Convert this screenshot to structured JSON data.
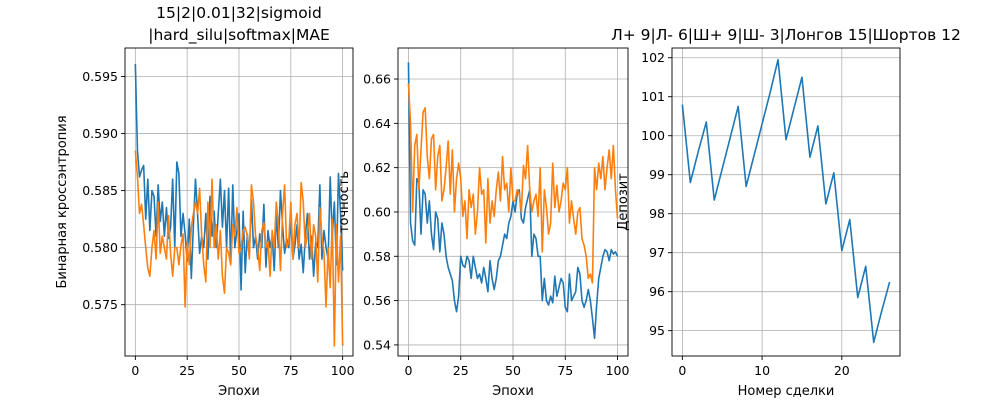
{
  "chart_data": [
    {
      "type": "line",
      "title": "15|2|0.01|32|sigmoid\n|hard_silu|softmax|MAE",
      "xlabel": "Эпохи",
      "ylabel": "Бинарная кроссэнтропия",
      "xlim": [
        -5,
        105
      ],
      "ylim": [
        0.5705,
        0.5975
      ],
      "xticks": [
        0,
        25,
        50,
        75,
        100
      ],
      "yticks": [
        0.575,
        0.58,
        0.585,
        0.59,
        0.595
      ],
      "ytick_labels": [
        "0.575",
        "0.580",
        "0.585",
        "0.590",
        "0.595"
      ],
      "grid": true,
      "series": [
        {
          "color": "#1f77b4",
          "x": [
            0,
            1,
            2,
            3,
            4,
            5,
            6,
            7,
            8,
            9,
            10,
            11,
            12,
            13,
            14,
            15,
            16,
            17,
            18,
            19,
            20,
            21,
            22,
            23,
            24,
            25,
            26,
            27,
            28,
            29,
            30,
            31,
            32,
            33,
            34,
            35,
            36,
            37,
            38,
            39,
            40,
            41,
            42,
            43,
            44,
            45,
            46,
            47,
            48,
            49,
            50,
            51,
            52,
            53,
            54,
            55,
            56,
            57,
            58,
            59,
            60,
            61,
            62,
            63,
            64,
            65,
            66,
            67,
            68,
            69,
            70,
            71,
            72,
            73,
            74,
            75,
            76,
            77,
            78,
            79,
            80,
            81,
            82,
            83,
            84,
            85,
            86,
            87,
            88,
            89,
            90,
            91,
            92,
            93,
            94,
            95,
            96,
            97,
            98,
            99,
            100
          ],
          "y": [
            0.5961,
            0.5885,
            0.5862,
            0.5868,
            0.5872,
            0.5825,
            0.586,
            0.5815,
            0.585,
            0.5845,
            0.581,
            0.5855,
            0.5823,
            0.584,
            0.581,
            0.5835,
            0.5808,
            0.5818,
            0.586,
            0.58,
            0.5875,
            0.5865,
            0.581,
            0.583,
            0.5812,
            0.5788,
            0.5825,
            0.5773,
            0.582,
            0.586,
            0.583,
            0.5795,
            0.581,
            0.58,
            0.583,
            0.579,
            0.5845,
            0.581,
            0.5832,
            0.58,
            0.583,
            0.586,
            0.5818,
            0.585,
            0.58,
            0.5852,
            0.5785,
            0.5855,
            0.58,
            0.5815,
            0.583,
            0.5763,
            0.5832,
            0.5778,
            0.5812,
            0.5795,
            0.5842,
            0.58,
            0.581,
            0.579,
            0.5812,
            0.58,
            0.5838,
            0.5783,
            0.5815,
            0.58,
            0.581,
            0.578,
            0.583,
            0.58,
            0.585,
            0.582,
            0.5795,
            0.5808,
            0.58,
            0.5825,
            0.579,
            0.5802,
            0.582,
            0.579,
            0.5803,
            0.5778,
            0.581,
            0.583,
            0.579,
            0.581,
            0.5775,
            0.5805,
            0.58,
            0.5855,
            0.579,
            0.5815,
            0.58,
            0.579,
            0.5862,
            0.581,
            0.584,
            0.5785,
            0.5865,
            0.583,
            0.578
          ]
        },
        {
          "color": "#ff7f0e",
          "x": [
            0,
            1,
            2,
            3,
            4,
            5,
            6,
            7,
            8,
            9,
            10,
            11,
            12,
            13,
            14,
            15,
            16,
            17,
            18,
            19,
            20,
            21,
            22,
            23,
            24,
            25,
            26,
            27,
            28,
            29,
            30,
            31,
            32,
            33,
            34,
            35,
            36,
            37,
            38,
            39,
            40,
            41,
            42,
            43,
            44,
            45,
            46,
            47,
            48,
            49,
            50,
            51,
            52,
            53,
            54,
            55,
            56,
            57,
            58,
            59,
            60,
            61,
            62,
            63,
            64,
            65,
            66,
            67,
            68,
            69,
            70,
            71,
            72,
            73,
            74,
            75,
            76,
            77,
            78,
            79,
            80,
            81,
            82,
            83,
            84,
            85,
            86,
            87,
            88,
            89,
            90,
            91,
            92,
            93,
            94,
            95,
            96,
            97,
            98,
            99,
            100
          ],
          "y": [
            0.5885,
            0.5862,
            0.583,
            0.5838,
            0.582,
            0.58,
            0.5782,
            0.5775,
            0.58,
            0.5815,
            0.579,
            0.584,
            0.5795,
            0.581,
            0.58,
            0.579,
            0.5828,
            0.5795,
            0.5775,
            0.58,
            0.58,
            0.5785,
            0.5802,
            0.5812,
            0.5748,
            0.5805,
            0.5785,
            0.5818,
            0.583,
            0.584,
            0.583,
            0.5852,
            0.581,
            0.5785,
            0.577,
            0.584,
            0.58,
            0.586,
            0.58,
            0.582,
            0.579,
            0.5815,
            0.5775,
            0.576,
            0.58,
            0.5795,
            0.5785,
            0.582,
            0.581,
            0.5835,
            0.5795,
            0.58,
            0.5815,
            0.5818,
            0.581,
            0.579,
            0.5855,
            0.584,
            0.581,
            0.58,
            0.578,
            0.5815,
            0.5822,
            0.58,
            0.5805,
            0.5775,
            0.5815,
            0.58,
            0.584,
            0.582,
            0.578,
            0.583,
            0.5855,
            0.58,
            0.5805,
            0.584,
            0.579,
            0.582,
            0.583,
            0.58,
            0.5857,
            0.584,
            0.58,
            0.5812,
            0.583,
            0.579,
            0.582,
            0.581,
            0.577,
            0.5835,
            0.581,
            0.5795,
            0.5748,
            0.58,
            0.5765,
            0.5825,
            0.5714,
            0.582,
            0.577,
            0.581,
            0.5714
          ]
        }
      ]
    },
    {
      "type": "line",
      "title": "",
      "xlabel": "Эпохи",
      "ylabel": "точность",
      "xlim": [
        -5,
        105
      ],
      "ylim": [
        0.535,
        0.674
      ],
      "xticks": [
        0,
        25,
        50,
        75,
        100
      ],
      "yticks": [
        0.54,
        0.56,
        0.58,
        0.6,
        0.62,
        0.64,
        0.66
      ],
      "ytick_labels": [
        "0.54",
        "0.56",
        "0.58",
        "0.60",
        "0.62",
        "0.64",
        "0.66"
      ],
      "grid": true,
      "series": [
        {
          "color": "#1f77b4",
          "x": [
            0,
            1,
            2,
            3,
            4,
            5,
            6,
            7,
            8,
            9,
            10,
            11,
            12,
            13,
            14,
            15,
            16,
            17,
            18,
            19,
            20,
            21,
            22,
            23,
            24,
            25,
            26,
            27,
            28,
            29,
            30,
            31,
            32,
            33,
            34,
            35,
            36,
            37,
            38,
            39,
            40,
            41,
            42,
            43,
            44,
            45,
            46,
            47,
            48,
            49,
            50,
            51,
            52,
            53,
            54,
            55,
            56,
            57,
            58,
            59,
            60,
            61,
            62,
            63,
            64,
            65,
            66,
            67,
            68,
            69,
            70,
            71,
            72,
            73,
            74,
            75,
            76,
            77,
            78,
            79,
            80,
            81,
            82,
            83,
            84,
            85,
            86,
            87,
            88,
            89,
            90,
            91,
            92,
            93,
            94,
            95,
            96,
            97,
            98,
            99,
            100
          ],
          "y": [
            0.6675,
            0.595,
            0.587,
            0.585,
            0.615,
            0.613,
            0.59,
            0.61,
            0.608,
            0.595,
            0.605,
            0.59,
            0.583,
            0.6,
            0.597,
            0.582,
            0.595,
            0.59,
            0.58,
            0.575,
            0.572,
            0.569,
            0.56,
            0.555,
            0.562,
            0.58,
            0.576,
            0.575,
            0.58,
            0.578,
            0.57,
            0.58,
            0.575,
            0.57,
            0.572,
            0.568,
            0.575,
            0.57,
            0.564,
            0.578,
            0.57,
            0.565,
            0.57,
            0.578,
            0.58,
            0.585,
            0.59,
            0.588,
            0.595,
            0.598,
            0.605,
            0.6,
            0.608,
            0.61,
            0.597,
            0.595,
            0.602,
            0.606,
            0.61,
            0.58,
            0.59,
            0.588,
            0.58,
            0.58,
            0.56,
            0.57,
            0.56,
            0.558,
            0.562,
            0.559,
            0.571,
            0.562,
            0.566,
            0.57,
            0.568,
            0.557,
            0.555,
            0.572,
            0.56,
            0.562,
            0.564,
            0.575,
            0.572,
            0.56,
            0.557,
            0.56,
            0.565,
            0.56,
            0.552,
            0.543,
            0.558,
            0.57,
            0.575,
            0.58,
            0.583,
            0.582,
            0.578,
            0.583,
            0.581,
            0.582,
            0.58
          ]
        },
        {
          "color": "#ff7f0e",
          "x": [
            0,
            1,
            2,
            3,
            4,
            5,
            6,
            7,
            8,
            9,
            10,
            11,
            12,
            13,
            14,
            15,
            16,
            17,
            18,
            19,
            20,
            21,
            22,
            23,
            24,
            25,
            26,
            27,
            28,
            29,
            30,
            31,
            32,
            33,
            34,
            35,
            36,
            37,
            38,
            39,
            40,
            41,
            42,
            43,
            44,
            45,
            46,
            47,
            48,
            49,
            50,
            51,
            52,
            53,
            54,
            55,
            56,
            57,
            58,
            59,
            60,
            61,
            62,
            63,
            64,
            65,
            66,
            67,
            68,
            69,
            70,
            71,
            72,
            73,
            74,
            75,
            76,
            77,
            78,
            79,
            80,
            81,
            82,
            83,
            84,
            85,
            86,
            87,
            88,
            89,
            90,
            91,
            92,
            93,
            94,
            95,
            96,
            97,
            98,
            99,
            100
          ],
          "y": [
            0.658,
            0.64,
            0.6,
            0.63,
            0.635,
            0.61,
            0.628,
            0.645,
            0.647,
            0.625,
            0.615,
            0.633,
            0.635,
            0.61,
            0.625,
            0.63,
            0.605,
            0.61,
            0.62,
            0.632,
            0.608,
            0.628,
            0.6,
            0.615,
            0.622,
            0.615,
            0.598,
            0.605,
            0.588,
            0.61,
            0.602,
            0.608,
            0.59,
            0.6,
            0.62,
            0.608,
            0.61,
            0.586,
            0.615,
            0.595,
            0.605,
            0.598,
            0.61,
            0.618,
            0.605,
            0.625,
            0.61,
            0.613,
            0.6,
            0.62,
            0.605,
            0.605,
            0.61,
            0.608,
            0.6,
            0.621,
            0.615,
            0.63,
            0.61,
            0.6,
            0.605,
            0.608,
            0.598,
            0.62,
            0.582,
            0.61,
            0.602,
            0.59,
            0.595,
            0.622,
            0.602,
            0.612,
            0.6,
            0.605,
            0.613,
            0.61,
            0.62,
            0.595,
            0.605,
            0.597,
            0.59,
            0.6,
            0.602,
            0.588,
            0.585,
            0.58,
            0.57,
            0.572,
            0.568,
            0.62,
            0.61,
            0.622,
            0.615,
            0.625,
            0.61,
            0.62,
            0.628,
            0.615,
            0.63,
            0.61,
            0.597
          ]
        }
      ]
    },
    {
      "type": "line",
      "title": "Л+ 9|Л- 6|Ш+ 9|Ш- 3|Лонгов 15|Шортов 12",
      "xlabel": "Номер сделки",
      "ylabel": "Депозит",
      "xlim": [
        -1.3,
        27.3
      ],
      "ylim": [
        94.35,
        102.25
      ],
      "xticks": [
        0,
        10,
        20
      ],
      "yticks": [
        95,
        96,
        97,
        98,
        99,
        100,
        101,
        102
      ],
      "ytick_labels": [
        "95",
        "96",
        "97",
        "98",
        "99",
        "100",
        "101",
        "102"
      ],
      "grid": true,
      "series": [
        {
          "color": "#1f77b4",
          "x": [
            0,
            1,
            2,
            3,
            4,
            5,
            6,
            7,
            8,
            9,
            10,
            11,
            12,
            13,
            14,
            15,
            16,
            17,
            18,
            19,
            20,
            21,
            22,
            23,
            24,
            25,
            26
          ],
          "y": [
            100.8,
            98.8,
            99.6,
            100.35,
            98.35,
            99.15,
            99.95,
            100.75,
            98.7,
            99.5,
            100.3,
            101.1,
            101.95,
            99.9,
            100.7,
            101.5,
            99.45,
            100.25,
            98.25,
            99.05,
            97.05,
            97.85,
            95.85,
            96.65,
            94.7,
            95.5,
            96.25
          ]
        }
      ]
    }
  ]
}
